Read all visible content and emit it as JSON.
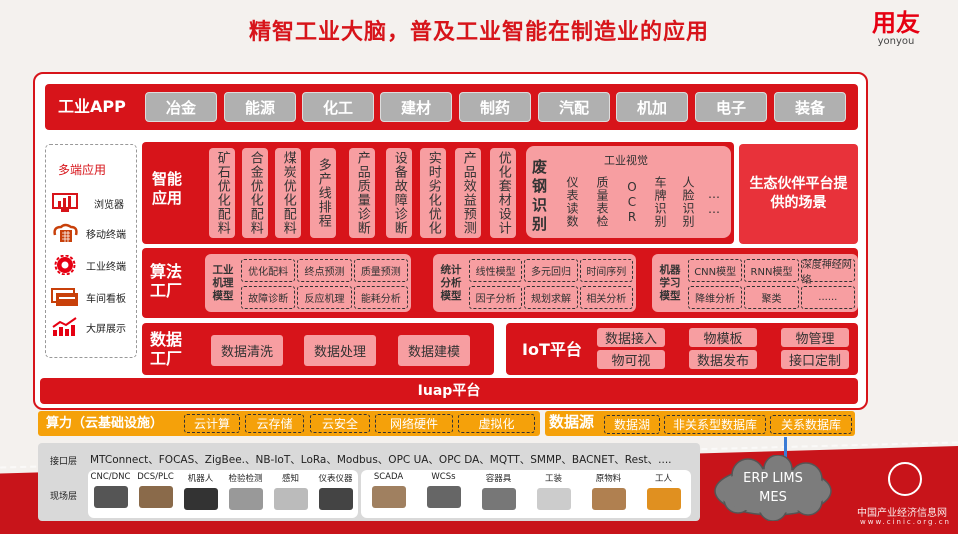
{
  "title": "精智工业大脑，普及工业智能在制造业的应用",
  "logo": {
    "cn": "用友",
    "en": "yonyou"
  },
  "industry_app": {
    "label": "工业APP",
    "items": [
      "冶金",
      "能源",
      "化工",
      "建材",
      "制药",
      "汽配",
      "机加",
      "电子",
      "装备"
    ]
  },
  "multi_app": {
    "title": "多端应用",
    "items": [
      {
        "label": "浏览器",
        "icon": "browser-icon"
      },
      {
        "label": "移动终端",
        "icon": "mobile-terminal-icon"
      },
      {
        "label": "工业终端",
        "icon": "gear-icon"
      },
      {
        "label": "车间看板",
        "icon": "board-icon"
      },
      {
        "label": "大屏展示",
        "icon": "trend-chart-icon"
      }
    ]
  },
  "smart_app": {
    "label": "智能应用",
    "items": [
      "矿石优化配料",
      "合金优化配料",
      "煤炭优化配料",
      "多产线排程",
      "产品质量诊断",
      "设备故障诊断",
      "实时劣化优化",
      "产品效益预测",
      "优化套材设计"
    ],
    "steel": "废钢识别",
    "vision_title": "工业视觉",
    "vision_items": [
      "仪表读数",
      "质量表检",
      "OCR",
      "车牌识别",
      "人脸识别",
      "……"
    ]
  },
  "ecosystem": "生态伙伴平台提供的场景",
  "algo": {
    "label": "算法工厂",
    "groups": [
      {
        "label": "工业机理模型",
        "cells": [
          "优化配料",
          "终点预测",
          "质量预测",
          "故障诊断",
          "反应机理",
          "能耗分析"
        ]
      },
      {
        "label": "统计分析模型",
        "cells": [
          "线性模型",
          "多元回归",
          "时间序列",
          "因子分析",
          "规划求解",
          "相关分析"
        ]
      },
      {
        "label": "机器学习模型",
        "cells": [
          "CNN模型",
          "RNN模型",
          "深度神经网络",
          "降维分析",
          "聚类",
          "......"
        ]
      }
    ]
  },
  "data_factory": {
    "label": "数据工厂",
    "items": [
      "数据清洗",
      "数据处理",
      "数据建模"
    ]
  },
  "iot": {
    "label": "IoT平台",
    "items": [
      "数据接入",
      "物模板",
      "物管理",
      "物可视",
      "数据发布",
      "接口定制"
    ]
  },
  "iuap": "Iuap平台",
  "compute": {
    "label": "算力（云基础设施）",
    "items": [
      "云计算",
      "云存储",
      "云安全",
      "网络硬件",
      "虚拟化"
    ]
  },
  "datasource": {
    "label": "数据源",
    "items": [
      "数据湖",
      "非关系型数据库",
      "关系数据库"
    ]
  },
  "interface": {
    "label": "接口层",
    "text": "MTConnect、FOCAS、ZigBee.、NB-IoT、LoRa、Modbus、OPC UA、OPC DA、MQTT、SMMP、BACNET、Rest、...."
  },
  "field": {
    "label": "现场层",
    "group1": [
      "CNC/DNC",
      "DCS/PLC",
      "机器人",
      "检验检测",
      "感知",
      "仪表仪器"
    ],
    "group2": [
      "SCADA",
      "WCSs",
      "容器具",
      "工装",
      "原物料",
      "工人"
    ]
  },
  "cloud": {
    "line1": "ERP  LIMS",
    "line2": "MES"
  },
  "watermark": {
    "cn": "中国产业经济信息网",
    "url": "www.cinic.org.cn"
  },
  "colors": {
    "red": "#d7141a",
    "pink": "#f79ea1",
    "orange": "#f5a10a",
    "gray": "#b0b0b0"
  }
}
